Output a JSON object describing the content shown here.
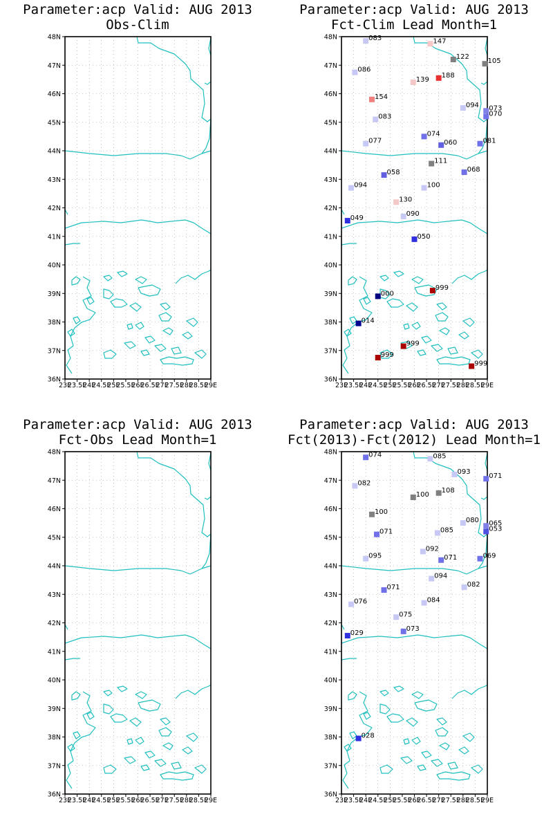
{
  "panels": [
    {
      "title_line1": "Parameter:acp Valid: AUG 2013",
      "title_line2": "Obs-Clim",
      "stations": []
    },
    {
      "title_line1": "Parameter:acp Valid: AUG 2013",
      "title_line2": "Fct-Clim Lead Month=1",
      "stations": [
        {
          "lon": 24.0,
          "lat": 47.85,
          "label": "083",
          "color": "#c8c8f5"
        },
        {
          "lon": 26.65,
          "lat": 47.75,
          "label": "147",
          "color": "#f7c8c8"
        },
        {
          "lon": 27.6,
          "lat": 47.2,
          "label": "122",
          "color": "#808080"
        },
        {
          "lon": 28.9,
          "lat": 47.05,
          "label": "105",
          "color": "#808080"
        },
        {
          "lon": 23.55,
          "lat": 46.75,
          "label": "086",
          "color": "#c8c8f5"
        },
        {
          "lon": 27.0,
          "lat": 46.55,
          "label": "188",
          "color": "#e83030"
        },
        {
          "lon": 25.95,
          "lat": 46.4,
          "label": "139",
          "color": "#f5c8c8"
        },
        {
          "lon": 24.25,
          "lat": 45.8,
          "label": "154",
          "color": "#f08080"
        },
        {
          "lon": 28.0,
          "lat": 45.5,
          "label": "094",
          "color": "#c8c8f5"
        },
        {
          "lon": 28.95,
          "lat": 45.4,
          "label": "073",
          "color": "#8080e8"
        },
        {
          "lon": 28.95,
          "lat": 45.2,
          "label": "070",
          "color": "#7070e8"
        },
        {
          "lon": 24.4,
          "lat": 45.1,
          "label": "083",
          "color": "#c8c8f5"
        },
        {
          "lon": 26.4,
          "lat": 44.5,
          "label": "074",
          "color": "#7070e8"
        },
        {
          "lon": 27.1,
          "lat": 44.2,
          "label": "060",
          "color": "#6060e0"
        },
        {
          "lon": 28.7,
          "lat": 44.25,
          "label": "081",
          "color": "#7070e8"
        },
        {
          "lon": 24.0,
          "lat": 44.25,
          "label": "077",
          "color": "#c8c8f5"
        },
        {
          "lon": 26.7,
          "lat": 43.55,
          "label": "111",
          "color": "#808080"
        },
        {
          "lon": 28.05,
          "lat": 43.25,
          "label": "068",
          "color": "#7070e8"
        },
        {
          "lon": 24.75,
          "lat": 43.15,
          "label": "058",
          "color": "#6060e0"
        },
        {
          "lon": 23.4,
          "lat": 42.7,
          "label": "094",
          "color": "#c8c8f5"
        },
        {
          "lon": 26.4,
          "lat": 42.7,
          "label": "100",
          "color": "#c8c8f5"
        },
        {
          "lon": 25.25,
          "lat": 42.2,
          "label": "130",
          "color": "#f5c8c8"
        },
        {
          "lon": 25.55,
          "lat": 41.7,
          "label": "090",
          "color": "#c8c8f5"
        },
        {
          "lon": 23.25,
          "lat": 41.55,
          "label": "049",
          "color": "#3030e0"
        },
        {
          "lon": 26.0,
          "lat": 40.9,
          "label": "050",
          "color": "#3030e0"
        },
        {
          "lon": 26.75,
          "lat": 39.1,
          "label": "999",
          "color": "#aa0000"
        },
        {
          "lon": 24.5,
          "lat": 38.9,
          "label": "000",
          "color": "#000080"
        },
        {
          "lon": 23.7,
          "lat": 37.95,
          "label": "014",
          "color": "#000090"
        },
        {
          "lon": 25.55,
          "lat": 37.15,
          "label": "999",
          "color": "#aa0000"
        },
        {
          "lon": 24.5,
          "lat": 36.75,
          "label": "999",
          "color": "#aa0000"
        },
        {
          "lon": 28.35,
          "lat": 36.45,
          "label": "999",
          "color": "#aa0000"
        }
      ]
    },
    {
      "title_line1": "Parameter:acp Valid: AUG 2013",
      "title_line2": "Fct-Obs Lead Month=1",
      "stations": []
    },
    {
      "title_line1": "Parameter:acp Valid: AUG 2013",
      "title_line2": "Fct(2013)-Fct(2012) Lead Month=1",
      "stations": [
        {
          "lon": 24.0,
          "lat": 47.8,
          "label": "074",
          "color": "#7070e8"
        },
        {
          "lon": 26.65,
          "lat": 47.75,
          "label": "085",
          "color": "#c8c8f5"
        },
        {
          "lon": 27.65,
          "lat": 47.2,
          "label": "093",
          "color": "#c8c8f5"
        },
        {
          "lon": 28.95,
          "lat": 47.05,
          "label": "071",
          "color": "#7070e8"
        },
        {
          "lon": 23.55,
          "lat": 46.8,
          "label": "082",
          "color": "#c8c8f5"
        },
        {
          "lon": 27.0,
          "lat": 46.55,
          "label": "108",
          "color": "#808080"
        },
        {
          "lon": 25.95,
          "lat": 46.4,
          "label": "100",
          "color": "#808080"
        },
        {
          "lon": 24.25,
          "lat": 45.8,
          "label": "100",
          "color": "#808080"
        },
        {
          "lon": 28.0,
          "lat": 45.5,
          "label": "080",
          "color": "#c8c8f5"
        },
        {
          "lon": 28.95,
          "lat": 45.4,
          "label": "065",
          "color": "#8080e8"
        },
        {
          "lon": 28.95,
          "lat": 45.2,
          "label": "053",
          "color": "#5050e0"
        },
        {
          "lon": 24.45,
          "lat": 45.1,
          "label": "071",
          "color": "#7070e8"
        },
        {
          "lon": 26.95,
          "lat": 45.15,
          "label": "085",
          "color": "#c8c8f5"
        },
        {
          "lon": 26.35,
          "lat": 44.5,
          "label": "092",
          "color": "#c8c8f5"
        },
        {
          "lon": 27.1,
          "lat": 44.2,
          "label": "071",
          "color": "#7070e8"
        },
        {
          "lon": 28.7,
          "lat": 44.25,
          "label": "069",
          "color": "#7070e8"
        },
        {
          "lon": 24.0,
          "lat": 44.25,
          "label": "095",
          "color": "#c8c8f5"
        },
        {
          "lon": 26.7,
          "lat": 43.55,
          "label": "094",
          "color": "#c8c8f5"
        },
        {
          "lon": 28.05,
          "lat": 43.25,
          "label": "082",
          "color": "#c8c8f5"
        },
        {
          "lon": 24.75,
          "lat": 43.15,
          "label": "071",
          "color": "#7070e8"
        },
        {
          "lon": 23.4,
          "lat": 42.65,
          "label": "076",
          "color": "#c8c8f5"
        },
        {
          "lon": 26.4,
          "lat": 42.7,
          "label": "084",
          "color": "#c8c8f5"
        },
        {
          "lon": 25.25,
          "lat": 42.2,
          "label": "075",
          "color": "#c8c8f5"
        },
        {
          "lon": 25.55,
          "lat": 41.7,
          "label": "073",
          "color": "#7070e8"
        },
        {
          "lon": 23.25,
          "lat": 41.55,
          "label": "029",
          "color": "#3030e0"
        },
        {
          "lon": 23.7,
          "lat": 37.95,
          "label": "028",
          "color": "#3030e0"
        }
      ]
    }
  ],
  "lat_ticks": [
    "48N",
    "47N",
    "46N",
    "45N",
    "44N",
    "43N",
    "42N",
    "41N",
    "40N",
    "39N",
    "38N",
    "37N",
    "36N"
  ],
  "lon_ticks": [
    "23E",
    "23.5E",
    "24E",
    "24.5E",
    "25E",
    "25.5E",
    "26E",
    "26.5E",
    "27E",
    "27.5E",
    "28E",
    "28.5E",
    "29E"
  ],
  "lat_range": [
    36,
    48
  ],
  "lon_range": [
    23,
    29
  ],
  "colors": {
    "coast": "#1fbfbf",
    "grid": "#9a9a9a",
    "frame": "#000000"
  }
}
